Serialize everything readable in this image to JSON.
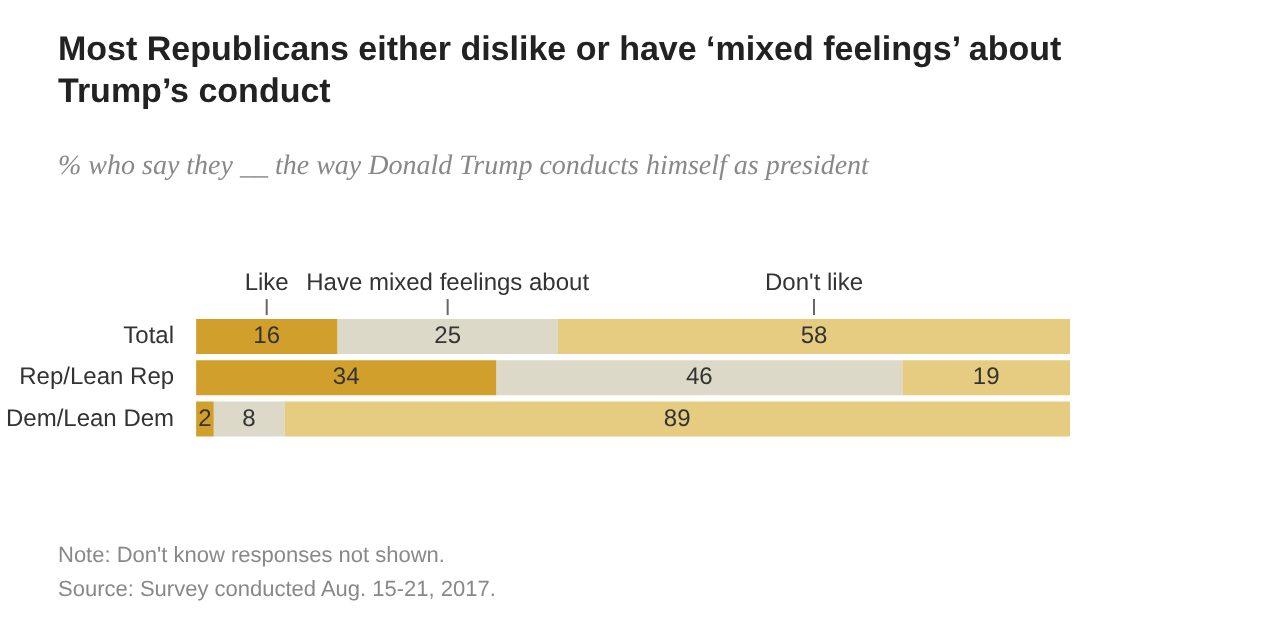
{
  "chart_data": {
    "type": "bar",
    "orientation": "horizontal",
    "stacked": true,
    "data_labels": true,
    "legend": false,
    "grid": false,
    "title": "Most Republicans either dislike or have ‘mixed feelings’ about Trump’s conduct",
    "subtitle": "% who say they __ the way Donald Trump conducts himself as president",
    "categories": [
      "Total",
      "Rep/Lean Rep",
      "Dem/Lean Dem"
    ],
    "series": [
      {
        "name": "Like",
        "color": "#d1a02c",
        "values": [
          16,
          34,
          2
        ]
      },
      {
        "name": "Have mixed feelings about",
        "color": "#dcd9c8",
        "values": [
          25,
          46,
          8
        ]
      },
      {
        "name": "Don't like",
        "color": "#e6cc80",
        "values": [
          58,
          19,
          89
        ]
      }
    ],
    "annotations": [
      "Note: Don't know responses not shown.",
      "Source: Survey conducted Aug. 15-21, 2017."
    ]
  }
}
